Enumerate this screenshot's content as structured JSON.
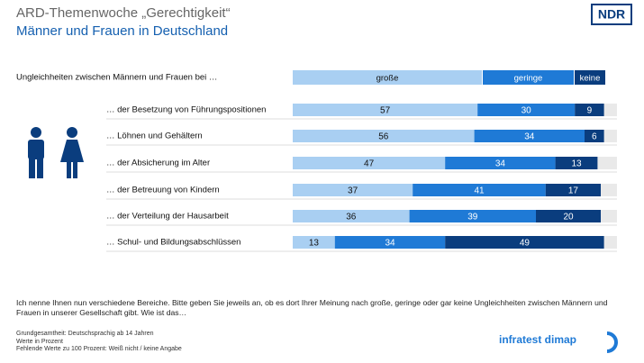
{
  "header": {
    "title": "ARD-Themenwoche „Gerechtigkeit“",
    "subtitle": "Männer und Frauen in Deutschland",
    "logo": "NDR"
  },
  "chart_data": {
    "type": "bar",
    "orientation": "horizontal",
    "stacked": true,
    "title": "Ungleichheiten zwischen Männern und Frauen bei …",
    "categories": [
      "… der Besetzung von Führungspositionen",
      "… Löhnen und Gehältern",
      "… der Absicherung im Alter",
      "… der Betreuung von Kindern",
      "… der Verteilung der Hausarbeit",
      "… Schul- und Bildungsabschlüssen"
    ],
    "series": [
      {
        "name": "große",
        "color": "#a9cff2",
        "values": [
          57,
          56,
          47,
          37,
          36,
          13
        ]
      },
      {
        "name": "geringe",
        "color": "#1f7ad6",
        "values": [
          30,
          34,
          34,
          41,
          39,
          34
        ]
      },
      {
        "name": "keine",
        "color": "#0a3d7e",
        "values": [
          9,
          6,
          13,
          17,
          20,
          49
        ]
      }
    ],
    "xlim": [
      0,
      100
    ]
  },
  "footer": {
    "question": "Ich nenne Ihnen nun verschiedene Bereiche. Bitte geben Sie jeweils an, ob es dort Ihrer Meinung nach große, geringe oder gar keine Ungleichheiten zwischen Männern und Frauen in unserer Gesellschaft gibt. Wie ist das…",
    "notes": [
      "Grundgesamtheit: Deutschsprachig ab 14 Jahren",
      "Werte in Prozent",
      "Fehlende Werte zu 100 Prozent: Weiß nicht / keine Angabe"
    ],
    "brand": "infratest dimap"
  }
}
